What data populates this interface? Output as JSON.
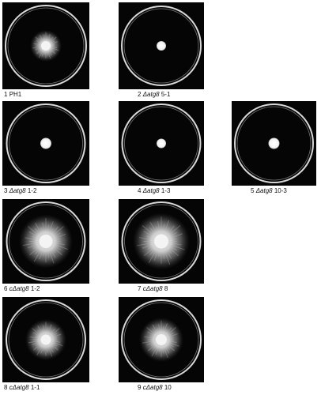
{
  "panels": [
    {
      "num": "1",
      "name": "PH1"
    },
    {
      "num": "2",
      "gene": "Δatg8",
      "clone": "5-1"
    },
    {
      "num": "3",
      "gene": "Δatg8",
      "clone": "1-2"
    },
    {
      "num": "4",
      "gene": "Δatg8",
      "clone": "1-3"
    },
    {
      "num": "5",
      "gene": "Δatg8",
      "clone": "10-3"
    },
    {
      "num": "6",
      "gene": "cΔatg8",
      "clone": "1-2"
    },
    {
      "num": "7",
      "gene": "cΔatg8",
      "clone": "8"
    },
    {
      "num": "8",
      "gene": "cΔatg8",
      "clone": "1-1"
    },
    {
      "num": "9",
      "gene": "cΔatg8",
      "clone": "10"
    }
  ]
}
